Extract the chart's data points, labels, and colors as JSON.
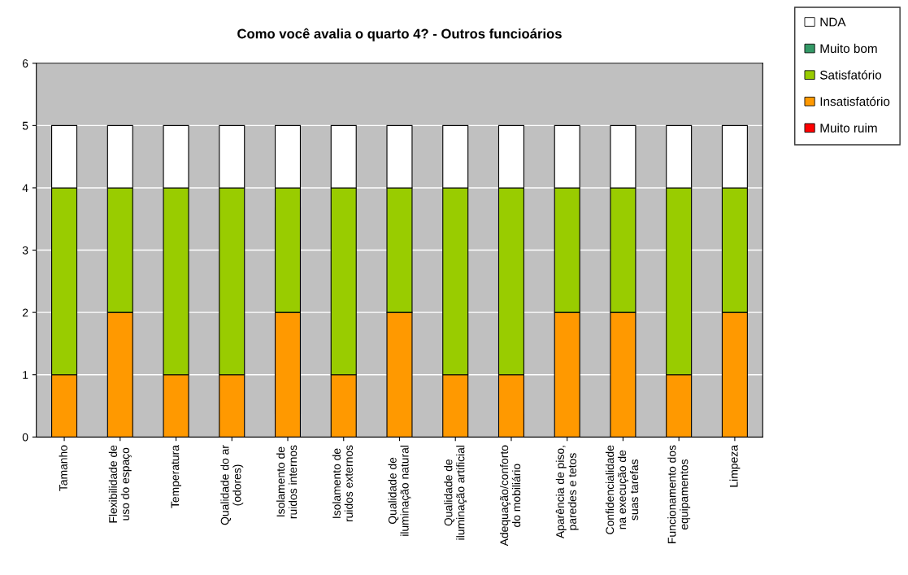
{
  "chart_data": {
    "type": "bar",
    "title": "Como você avalia o quarto 4? - Outros funcioários",
    "stacked": true,
    "categories": [
      "Tamanho",
      "Flexibilidade de\nuso do espaço",
      "Temperatura",
      "Qualidade do ar\n(odores)",
      "Isolamento de\nruidos internos",
      "Isolamento de\nruidos externos",
      "Qualidade de\niluminação natural",
      "Qualidade de\niluminação artificial",
      "Adequação/conforto\ndo mobiliário",
      "Aparência de piso,\nparedes e tetos",
      "Confidencialidade\nna execução de\nsuas tarefas",
      "Funcionamento dos\nequipamentos",
      "Limpeza"
    ],
    "series": [
      {
        "name": "Muito ruim",
        "color": "#ff0000",
        "values": [
          0,
          0,
          0,
          0,
          0,
          0,
          0,
          0,
          0,
          0,
          0,
          0,
          0
        ]
      },
      {
        "name": "Insatisfatório",
        "color": "#ff9900",
        "values": [
          1,
          2,
          1,
          1,
          2,
          1,
          2,
          1,
          1,
          2,
          2,
          1,
          2
        ]
      },
      {
        "name": "Satisfatório",
        "color": "#99cc00",
        "values": [
          3,
          2,
          3,
          3,
          2,
          3,
          2,
          3,
          3,
          2,
          2,
          3,
          2
        ]
      },
      {
        "name": "Muito bom",
        "color": "#339966",
        "values": [
          0,
          0,
          0,
          0,
          0,
          0,
          0,
          0,
          0,
          0,
          0,
          0,
          0
        ]
      },
      {
        "name": "NDA",
        "color": "#ffffff",
        "values": [
          1,
          1,
          1,
          1,
          1,
          1,
          1,
          1,
          1,
          1,
          1,
          1,
          1
        ]
      }
    ],
    "ylim": [
      0,
      6
    ],
    "yticks": [
      0,
      1,
      2,
      3,
      4,
      5,
      6
    ],
    "grid": "y",
    "legend": "top right"
  }
}
